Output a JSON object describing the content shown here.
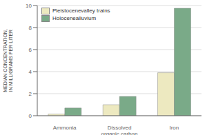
{
  "chart_data": {
    "type": "bar",
    "categories": [
      "Ammonia",
      "Dissolved\norganic carbon",
      "Iron"
    ],
    "series": [
      {
        "name": "Pleistocenevalley trains",
        "color": "#ede9c0",
        "values": [
          0.15,
          1.0,
          3.9
        ]
      },
      {
        "name": "Holocenealluvium",
        "color": "#7aaa88",
        "values": [
          0.7,
          1.75,
          9.75
        ]
      }
    ],
    "ylabel": "MEDIAN CONCENTRATION,\nIN MILLIGRAMS PER LITER",
    "ylim": [
      0,
      10
    ],
    "yticks": [
      0,
      2,
      4,
      6,
      8,
      10
    ],
    "grid": true,
    "legend": "upper left"
  }
}
